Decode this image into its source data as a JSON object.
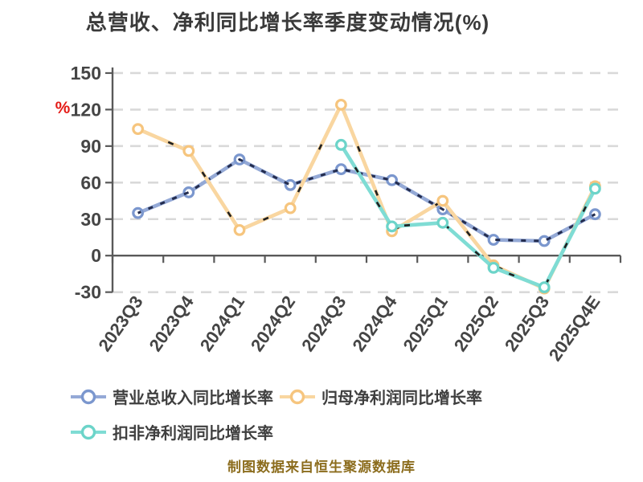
{
  "title": "总营收、净利同比增长率季度变动情况(%)",
  "caption": {
    "text": "制图数据来自恒生聚源数据库"
  },
  "axis": {
    "unit_label": "%"
  },
  "colors": {
    "revenue": "#94a9d6",
    "revenue_ring": "#7b97ce",
    "net_profit": "#f9d6a0",
    "net_profit_ring": "#f6c57e",
    "non_gaap": "#7fdcd4",
    "non_gaap_ring": "#6cd4c9",
    "dash_overlay_blue": "#232c4e",
    "dash_overlay_dark": "#1f1f1f",
    "grid": "#d9d9d9",
    "axis_line": "#595959",
    "tick_text": "#454545",
    "title_text": "#3a3a3a",
    "unit_label": "#e41b17",
    "legend_text": "#3f3f3f",
    "caption_text": "#8c6d1e"
  },
  "legend": {
    "items": [
      {
        "label": "营业总收入同比增长率",
        "series": "revenue"
      },
      {
        "label": "归母净利润同比增长率",
        "series": "net_profit"
      },
      {
        "label": "扣非净利润同比增长率",
        "series": "non_gaap"
      }
    ]
  },
  "chart_data": {
    "type": "line",
    "title": "总营收、净利同比增长率季度变动情况(%)",
    "ylabel": "%",
    "xlabel": "",
    "ylim": [
      -30,
      150
    ],
    "yticks": [
      150,
      120,
      90,
      60,
      30,
      0,
      -30
    ],
    "grid": true,
    "legend_position": "bottom",
    "categories": [
      "2023Q3",
      "2023Q4",
      "2024Q1",
      "2024Q2",
      "2024Q3",
      "2024Q4",
      "2025Q1",
      "2025Q2",
      "2025Q3",
      "2025Q4E"
    ],
    "series": [
      {
        "name": "营业总收入同比增长率",
        "key": "revenue",
        "values": [
          35,
          52,
          79,
          58,
          71,
          62,
          38,
          13,
          12,
          34
        ]
      },
      {
        "name": "归母净利润同比增长率",
        "key": "net_profit",
        "values": [
          104,
          86,
          21,
          39,
          124,
          20,
          45,
          -8,
          -27,
          57
        ]
      },
      {
        "name": "扣非净利润同比增长率",
        "key": "non_gaap",
        "values": [
          null,
          null,
          null,
          null,
          91,
          24,
          27,
          -10,
          -26,
          55
        ]
      }
    ]
  }
}
